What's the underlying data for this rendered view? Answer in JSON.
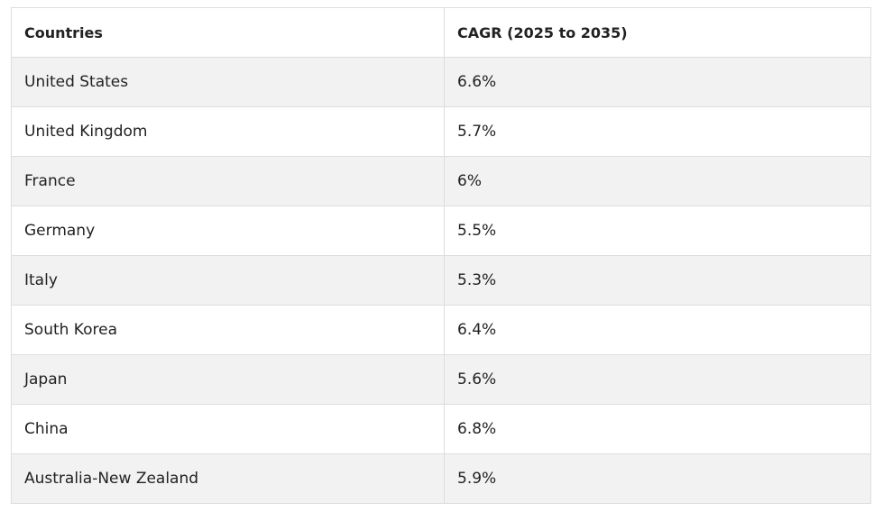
{
  "table": {
    "headers": [
      "Countries",
      "CAGR (2025 to 2035)"
    ],
    "rows": [
      [
        "United States",
        "6.6%"
      ],
      [
        "United Kingdom",
        "5.7%"
      ],
      [
        "France",
        "6%"
      ],
      [
        "Germany",
        "5.5%"
      ],
      [
        "Italy",
        "5.3%"
      ],
      [
        "South Korea",
        "6.4%"
      ],
      [
        "Japan",
        "5.6%"
      ],
      [
        "China",
        "6.8%"
      ],
      [
        "Australia-New Zealand",
        "5.9%"
      ]
    ]
  }
}
